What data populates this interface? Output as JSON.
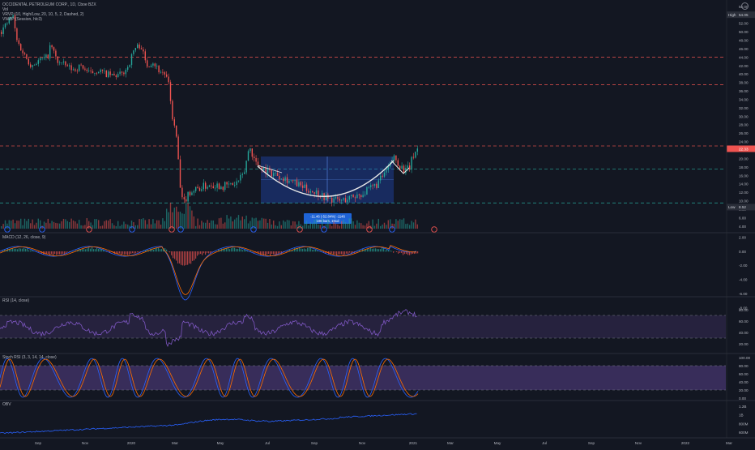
{
  "header": {
    "title": "OCCIDENTAL PETROLEUM CORP., 1D, Cboe BZX",
    "vol": "Vol",
    "vrvp": "VRVP (10, High/Low, 20, 10, 5, 2, Dashed, 2)",
    "vwap": "VWAP (Session, hlc3)"
  },
  "panes": {
    "macd": "MACD (12, 26, close, 9)",
    "rsi": "RSI (14, close)",
    "stoch": "Stoch RSI (3, 3, 14, 14, close)",
    "obv": "OBV"
  },
  "price_axis": {
    "ticks": [
      "56.00",
      "54.00",
      "52.00",
      "50.00",
      "48.00",
      "46.00",
      "44.00",
      "42.00",
      "40.00",
      "38.00",
      "36.00",
      "34.00",
      "32.00",
      "30.00",
      "28.00",
      "26.00",
      "24.00",
      "22.00",
      "20.00",
      "18.00",
      "16.00",
      "14.00",
      "12.00",
      "10.00",
      "8.00",
      "6.00",
      "4.00"
    ],
    "high_label": "High",
    "high_value": "54.05",
    "low_label": "Low",
    "low_value": "8.52",
    "last_value": "22.33"
  },
  "macd_axis": [
    "2.00",
    "0.00",
    "-2.00",
    "-4.00",
    "-6.00",
    "-8.00"
  ],
  "rsi_axis": [
    "80.00",
    "60.00",
    "40.00",
    "20.00"
  ],
  "stoch_axis": [
    "100.00",
    "80.00",
    "60.00",
    "40.00",
    "20.00",
    "0.00"
  ],
  "obv_axis": [
    "1.2B",
    "1B",
    "800M",
    "600M"
  ],
  "time_axis": [
    "Sep",
    "Nov",
    "2020",
    "Mar",
    "May",
    "Jul",
    "Sep",
    "Nov",
    "2021",
    "Mar",
    "May",
    "Jul",
    "Sep",
    "Nov",
    "2022",
    "Mar"
  ],
  "annotation": {
    "line1": "-11.46 (-52.84%) -1146",
    "line2": "106 bars, 151d"
  },
  "colors": {
    "background": "#131722",
    "up": "#26a69a",
    "down": "#ef5350",
    "rsi": "#7e57c2",
    "macd": "#2962ff",
    "signal": "#ff6d00",
    "obv": "#2962ff",
    "resistance_line": "#ef5350",
    "support_line": "#26a69a",
    "range_box": "#2962ff"
  },
  "chart_data": [
    {
      "type": "line",
      "title": "OCCIDENTAL PETROLEUM CORP., 1D, Cboe BZX",
      "x": [
        "2019-08",
        "2019-09",
        "2019-10",
        "2019-11",
        "2019-12",
        "2020-01",
        "2020-02",
        "2020-03",
        "2020-04",
        "2020-05",
        "2020-06",
        "2020-07",
        "2020-08",
        "2020-09",
        "2020-10",
        "2020-11",
        "2020-12",
        "2021-01"
      ],
      "series": [
        {
          "values": [
            53,
            47,
            44,
            42,
            40,
            44,
            38,
            11,
            13,
            15,
            23,
            16,
            14,
            11,
            10,
            11,
            20,
            22
          ]
        }
      ],
      "horizontal_levels": [
        44,
        37.5,
        23,
        17.5,
        9.5
      ],
      "range_box": {
        "x0": "2020-06",
        "x1": "2020-12",
        "y0": 9.5,
        "y1": 20.5
      },
      "ylim": [
        4,
        56
      ],
      "grid": false
    },
    {
      "type": "line",
      "title": "MACD (12, 26, close, 9)",
      "ylim": [
        -8,
        2
      ]
    },
    {
      "type": "line",
      "title": "RSI (14, close)",
      "ylim": [
        10,
        90
      ]
    },
    {
      "type": "line",
      "title": "Stoch RSI (3, 3, 14, 14, close)",
      "ylim": [
        0,
        100
      ]
    },
    {
      "type": "line",
      "title": "OBV",
      "ylim": [
        0.55,
        1.2
      ]
    }
  ]
}
